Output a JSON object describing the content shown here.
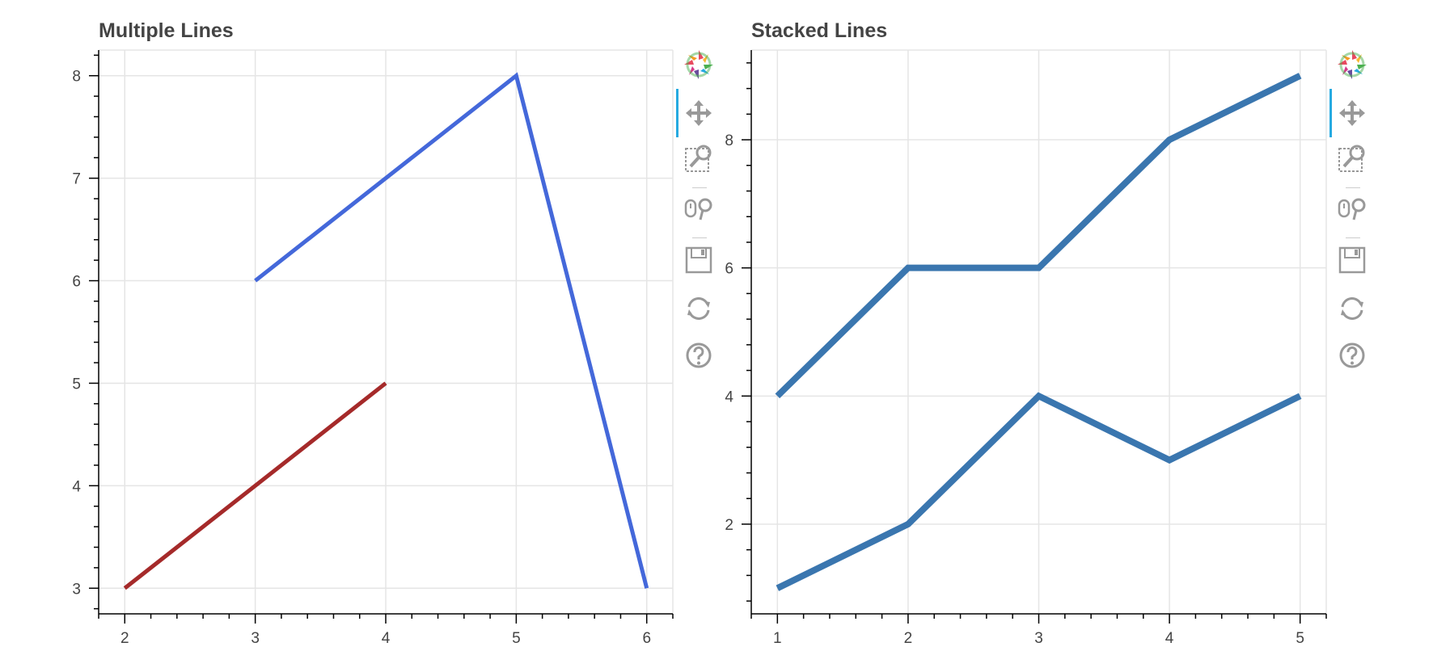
{
  "chart_data": [
    {
      "type": "line",
      "title": "Multiple  Lines",
      "xlabel": "",
      "ylabel": "",
      "xlim": [
        1.8,
        6.2
      ],
      "ylim": [
        2.75,
        8.25
      ],
      "x_ticks": [
        2,
        3,
        4,
        5,
        6
      ],
      "y_ticks": [
        3,
        4,
        5,
        6,
        7,
        8
      ],
      "grid": true,
      "series": [
        {
          "x": [
            3,
            5,
            6
          ],
          "y": [
            6,
            8,
            3
          ],
          "color": "#4468da"
        },
        {
          "x": [
            2,
            4
          ],
          "y": [
            3,
            5
          ],
          "color": "#a52a2a"
        }
      ]
    },
    {
      "type": "line",
      "title": "Stacked  Lines",
      "xlabel": "",
      "ylabel": "",
      "xlim": [
        0.8,
        5.2
      ],
      "ylim": [
        0.6,
        9.4
      ],
      "x_ticks": [
        1,
        2,
        3,
        4,
        5
      ],
      "y_ticks": [
        2,
        4,
        6,
        8
      ],
      "grid": true,
      "series": [
        {
          "x": [
            1,
            2,
            3,
            4,
            5
          ],
          "y": [
            1,
            2,
            4,
            3,
            4
          ],
          "color": "#3a76af"
        },
        {
          "x": [
            1,
            2,
            3,
            4,
            5
          ],
          "y": [
            4,
            6,
            6,
            8,
            9
          ],
          "color": "#3a76af"
        }
      ]
    }
  ],
  "toolbar": {
    "tools": [
      "bokeh-logo-icon",
      "pan-icon",
      "box-zoom-icon",
      "wheel-zoom-icon",
      "save-icon",
      "reset-icon",
      "help-icon"
    ],
    "active_tool": "pan-icon"
  }
}
